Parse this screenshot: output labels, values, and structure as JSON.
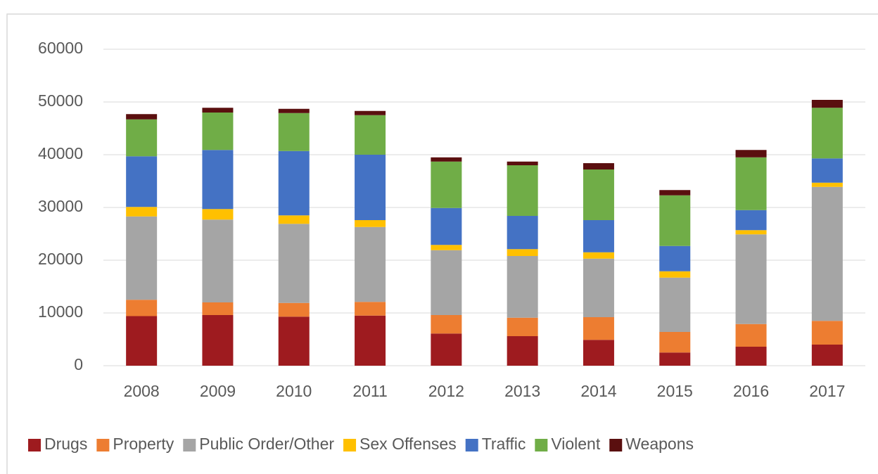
{
  "chart_data": {
    "type": "stacked_bar",
    "categories": [
      "2008",
      "2009",
      "2010",
      "2011",
      "2012",
      "2013",
      "2014",
      "2015",
      "2016",
      "2017"
    ],
    "series": [
      {
        "name": "Drugs",
        "color": "#9e1b1f",
        "values": [
          9400,
          9600,
          9300,
          9500,
          6100,
          5600,
          4900,
          2500,
          3600,
          4000
        ]
      },
      {
        "name": "Property",
        "color": "#ed7d31",
        "values": [
          3100,
          2400,
          2600,
          2600,
          3500,
          3500,
          4300,
          3900,
          4300,
          4500
        ]
      },
      {
        "name": "Public Order/Other",
        "color": "#a5a5a5",
        "values": [
          15800,
          15700,
          15000,
          14200,
          12300,
          11700,
          11100,
          10300,
          17000,
          25400
        ]
      },
      {
        "name": "Sex Offenses",
        "color": "#ffc000",
        "values": [
          1800,
          2000,
          1600,
          1300,
          1000,
          1300,
          1200,
          1200,
          800,
          800
        ]
      },
      {
        "name": "Traffic",
        "color": "#4472c4",
        "values": [
          9600,
          11200,
          12200,
          12400,
          7000,
          6300,
          6100,
          4800,
          3800,
          4600
        ]
      },
      {
        "name": "Violent",
        "color": "#70ad47",
        "values": [
          7000,
          7100,
          7200,
          7500,
          8800,
          9600,
          9600,
          9600,
          10000,
          9600
        ]
      },
      {
        "name": "Weapons",
        "color": "#5a0f0f",
        "values": [
          1000,
          900,
          800,
          800,
          800,
          700,
          1200,
          1000,
          1400,
          1500
        ]
      }
    ],
    "ylim": [
      0,
      60000
    ],
    "yticks": [
      0,
      10000,
      20000,
      30000,
      40000,
      50000,
      60000
    ],
    "grid": true,
    "legend": "bottom"
  }
}
